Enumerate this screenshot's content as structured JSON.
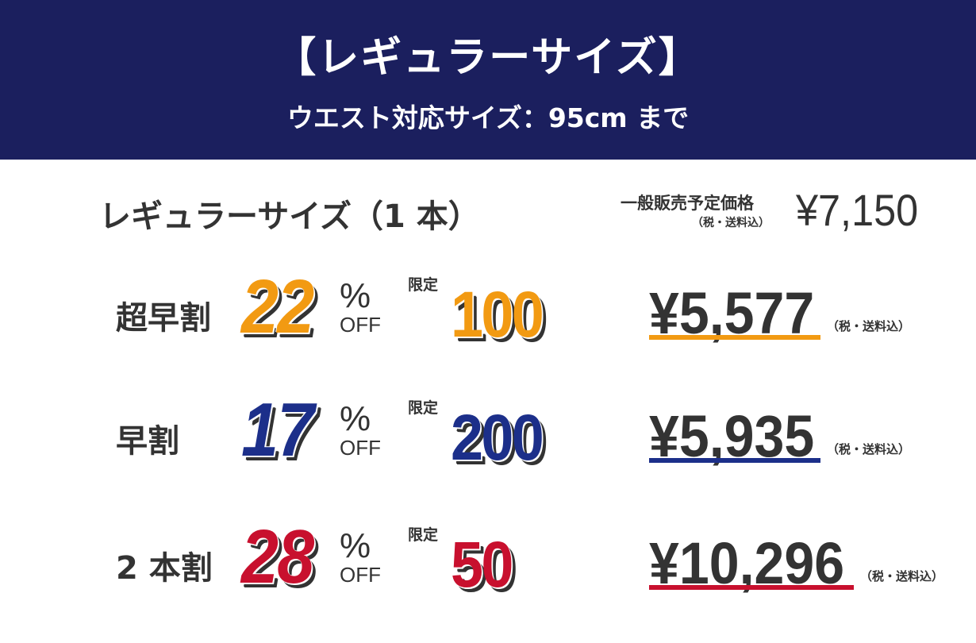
{
  "header": {
    "title": "【レギュラーサイズ】",
    "subtitle": "ウエスト対応サイズ：95cm まで"
  },
  "product": {
    "name": "レギュラーサイズ（1 本）",
    "regular_label": "一般販売予定価格",
    "regular_tax": "（税・送料込）",
    "regular_price": "¥7,150"
  },
  "rows": [
    {
      "label": "超早割",
      "discount": "22",
      "pct": "%",
      "off": "OFF",
      "limit_label": "限定",
      "limit": "100",
      "price": "¥5,577",
      "tax": "（税・送料込）",
      "color": "#f29a12"
    },
    {
      "label": "早割",
      "discount": "17",
      "pct": "%",
      "off": "OFF",
      "limit_label": "限定",
      "limit": "200",
      "price": "¥5,935",
      "tax": "（税・送料込）",
      "color": "#1c2f8a"
    },
    {
      "label": "2 本割",
      "discount": "28",
      "pct": "%",
      "off": "OFF",
      "limit_label": "限定",
      "limit": "50",
      "price": "¥10,296",
      "tax": "（税・送料込）",
      "color": "#c8102e"
    }
  ],
  "colors": {
    "header_bg": "#1b1f5e",
    "text": "#333333"
  }
}
